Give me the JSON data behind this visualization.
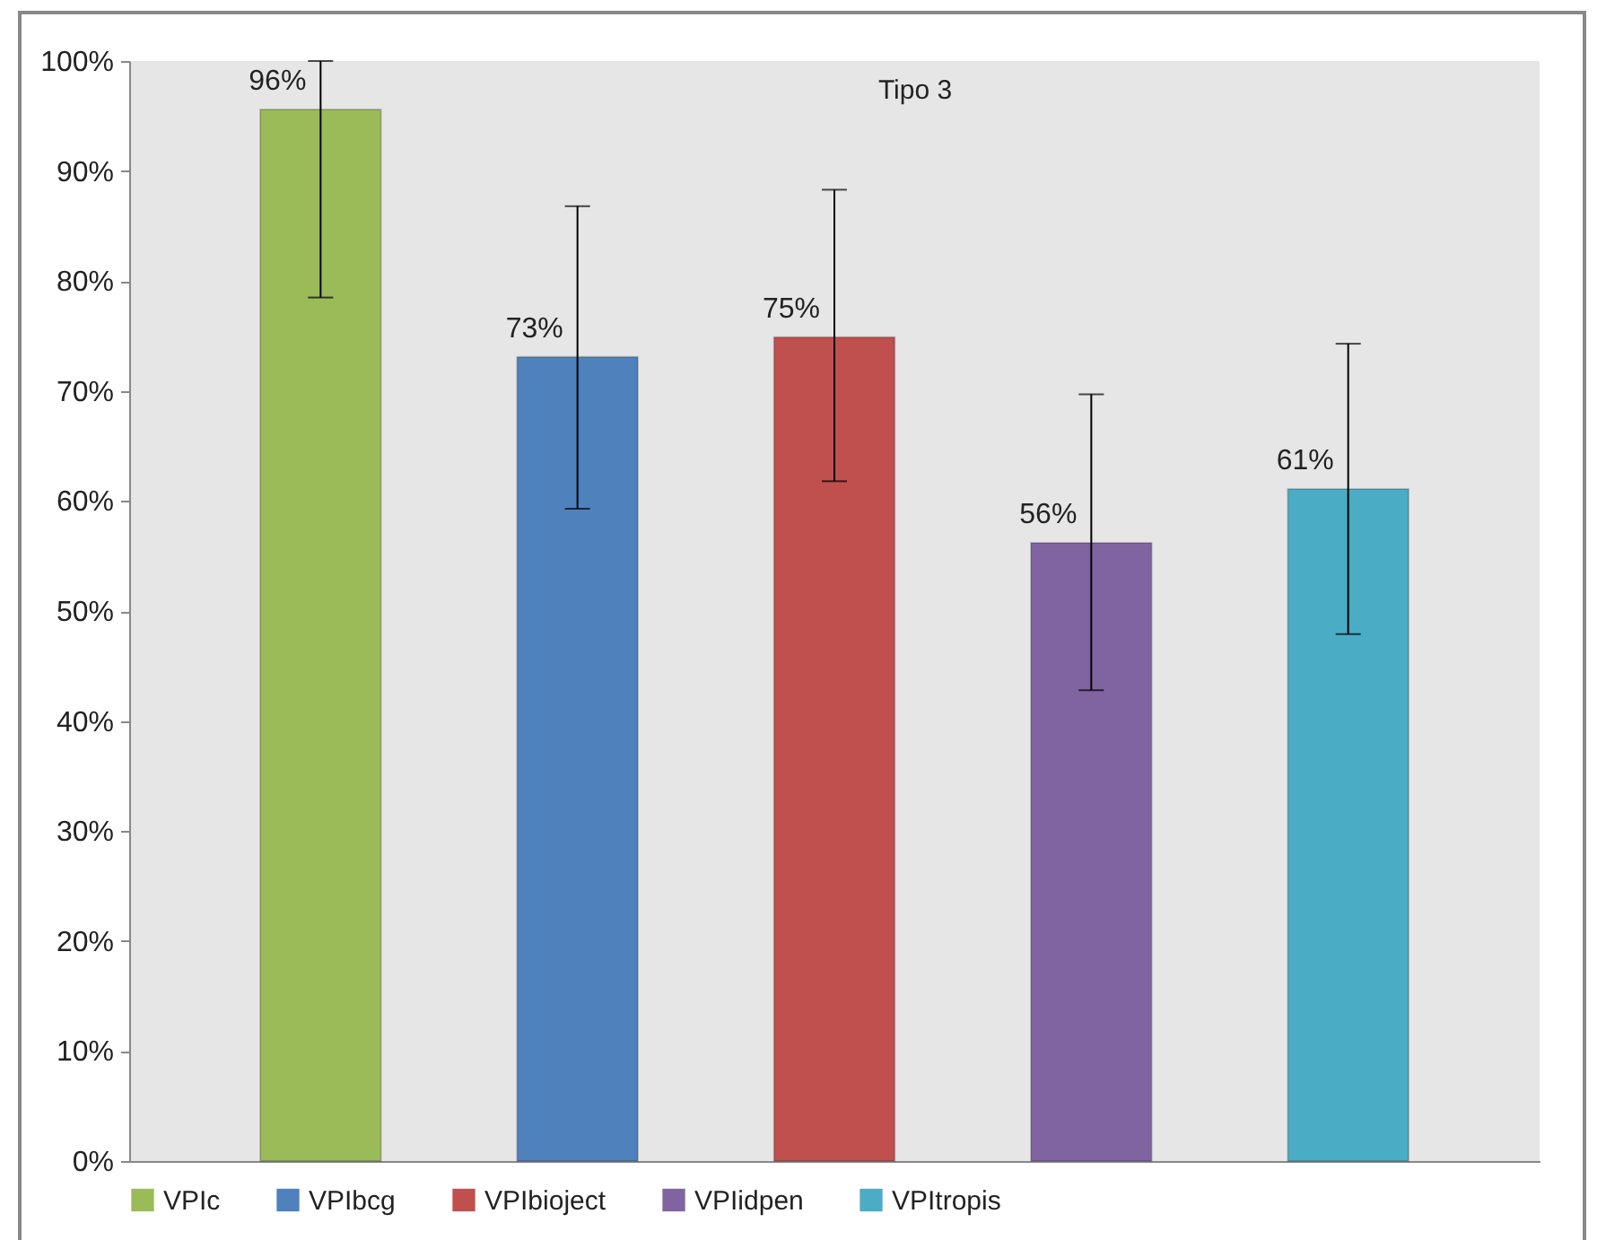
{
  "chart_data": {
    "type": "bar",
    "title": "Tipo 3",
    "categories": [
      null
    ],
    "series": [
      {
        "name": "VPIc",
        "color": "#9bbb59",
        "values": [
          95.6
        ],
        "errors": [
          [
            78.5,
            100
          ]
        ],
        "value_labels": [
          "96%"
        ]
      },
      {
        "name": "VPIbcg",
        "color": "#4f81bd",
        "values": [
          73.1
        ],
        "errors": [
          [
            59.3,
            86.8
          ]
        ],
        "value_labels": [
          "73%"
        ]
      },
      {
        "name": "VPIbioject",
        "color": "#c0504d",
        "values": [
          74.9
        ],
        "errors": [
          [
            61.8,
            88.3
          ]
        ],
        "value_labels": [
          "75%"
        ]
      },
      {
        "name": "VPIidpen",
        "color": "#8064a2",
        "values": [
          56.2
        ],
        "errors": [
          [
            42.8,
            69.7
          ]
        ],
        "value_labels": [
          "56%"
        ]
      },
      {
        "name": "VPItropis",
        "color": "#4bacc6",
        "values": [
          61.1
        ],
        "errors": [
          [
            47.9,
            74.3
          ]
        ],
        "value_labels": [
          "61%"
        ]
      }
    ],
    "ylim": [
      0,
      100
    ],
    "yticks": [
      {
        "value": 0,
        "label": "0%"
      },
      {
        "value": 10,
        "label": "10%"
      },
      {
        "value": 20,
        "label": "20%"
      },
      {
        "value": 30,
        "label": "30%"
      },
      {
        "value": 40,
        "label": "40%"
      },
      {
        "value": 50,
        "label": "50%"
      },
      {
        "value": 60,
        "label": "60%"
      },
      {
        "value": 70,
        "label": "70%"
      },
      {
        "value": 80,
        "label": "80%"
      },
      {
        "value": 90,
        "label": "90%"
      },
      {
        "value": 100,
        "label": "100%"
      }
    ],
    "tick_labels": "y",
    "legend": "bottom",
    "grid": false
  }
}
